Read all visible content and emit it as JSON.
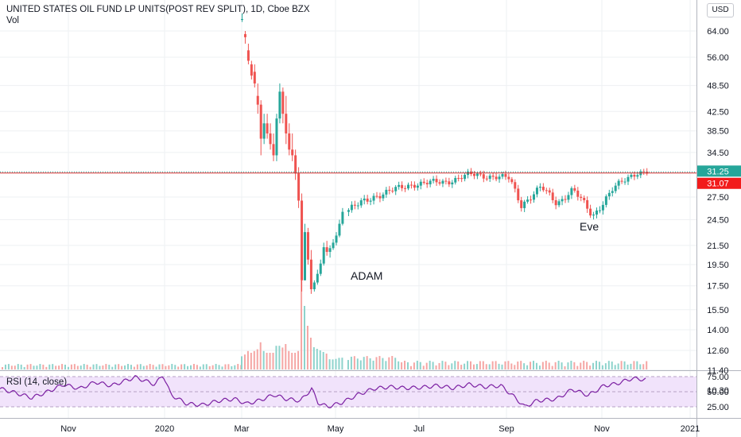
{
  "header": {
    "title": "UNITED STATES OIL FUND LP UNITS(POST REV SPLIT), 1D, Cboe BZX",
    "volume_label": "Vol",
    "currency": "USD"
  },
  "rsi_legend": "RSI (14, close)",
  "annotations": {
    "adam": "ADAM",
    "eve": "Eve"
  },
  "colors": {
    "up": "#26a69a",
    "down": "#ef5350",
    "vol_up": "#8dd3cc",
    "vol_down": "#f5a6a4",
    "rsi_line": "#7b1fa2",
    "rsi_band": "#f1e3fb",
    "hline": "#d32f2f",
    "grid": "#eef0f3"
  },
  "chart_data": {
    "type": "candlestick",
    "title": "UNITED STATES OIL FUND LP UNITS(POST REV SPLIT), 1D, Cboe BZX",
    "price_axis_ticks": [
      "64.00",
      "56.00",
      "48.50",
      "42.50",
      "38.50",
      "34.50",
      "27.50",
      "24.50",
      "21.50",
      "19.50",
      "17.50",
      "15.50",
      "14.00",
      "12.60",
      "11.40",
      "10.30"
    ],
    "time_axis_ticks": [
      "Nov",
      "2020",
      "Mar",
      "May",
      "Jul",
      "Sep",
      "Nov",
      "2021"
    ],
    "rsi_axis_ticks": [
      "75.00",
      "50.00",
      "25.00"
    ],
    "last_price": "31.25",
    "horizontal_line": "31.07",
    "price_range": [
      10.3,
      64
    ],
    "series": [
      {
        "name": "segA",
        "kind": "cluster",
        "candles": [
          [
            68.0,
            70.0,
            67.0,
            68.0
          ],
          [
            63.0,
            64.0,
            60.0,
            62.0
          ],
          [
            58.0,
            60.0,
            54.0,
            55.0
          ],
          [
            54.0,
            55.0,
            50.0,
            51.0
          ],
          [
            52.0,
            54.0,
            48.0,
            49.0
          ],
          [
            46.0,
            49.0,
            42.0,
            44.0
          ],
          [
            44.0,
            45.0,
            34.0,
            37.0
          ],
          [
            37.0,
            42.0,
            36.0,
            40.0
          ],
          [
            40.0,
            42.0,
            37.0,
            38.0
          ],
          [
            38.0,
            40.0,
            35.0,
            36.0
          ],
          [
            36.0,
            38.0,
            33.0,
            34.0
          ],
          [
            34.0,
            42.0,
            33.0,
            41.0
          ],
          [
            41.0,
            49.0,
            40.0,
            47.0
          ],
          [
            47.0,
            48.0,
            40.0,
            42.0
          ],
          [
            42.0,
            46.0,
            36.0,
            38.0
          ],
          [
            38.0,
            40.0,
            34.0,
            35.0
          ],
          [
            35.0,
            38.0,
            33.0,
            34.0
          ],
          [
            34.0,
            35.0,
            30.0,
            31.0
          ],
          [
            31.0,
            32.0,
            26.0,
            27.0
          ],
          [
            27.0,
            28.0,
            17.0,
            18.0
          ],
          [
            18.0,
            24.0,
            18.0,
            23.0
          ],
          [
            23.0,
            23.5,
            19.5,
            20.0
          ],
          [
            20.0,
            21.0,
            16.8,
            17.2
          ],
          [
            17.2,
            18.0,
            17.0,
            17.8
          ],
          [
            17.8,
            19.0,
            17.6,
            18.6
          ],
          [
            18.6,
            20.0,
            18.4,
            19.6
          ],
          [
            19.6,
            21.8,
            19.4,
            21.3
          ],
          [
            21.3,
            22.0,
            20.4,
            20.8
          ],
          [
            20.8,
            21.5,
            20.2,
            21.2
          ],
          [
            21.2,
            22.2,
            21.0,
            21.8
          ],
          [
            21.8,
            23.0,
            21.5,
            22.6
          ],
          [
            22.6,
            24.5,
            22.4,
            24.0
          ],
          [
            24.0,
            26.0,
            23.8,
            25.5
          ]
        ]
      },
      {
        "name": "segB",
        "kind": "trend",
        "anchors": [
          [
            434,
            25.5
          ],
          [
            470,
            27.6
          ],
          [
            520,
            29.4
          ],
          [
            560,
            29.7
          ],
          [
            590,
            30.8
          ],
          [
            625,
            30.5
          ],
          [
            640,
            30.2
          ],
          [
            655,
            26.4
          ],
          [
            680,
            28.9
          ],
          [
            700,
            26.6
          ],
          [
            720,
            28.6
          ],
          [
            745,
            24.9
          ],
          [
            770,
            28.6
          ],
          [
            800,
            31.2
          ],
          [
            815,
            31.3
          ]
        ]
      }
    ],
    "rsi": {
      "levels": [
        75,
        50,
        25
      ],
      "anchors": [
        [
          0,
          55
        ],
        [
          20,
          48
        ],
        [
          40,
          40
        ],
        [
          60,
          50
        ],
        [
          80,
          62
        ],
        [
          100,
          55
        ],
        [
          120,
          66
        ],
        [
          140,
          60
        ],
        [
          170,
          74
        ],
        [
          195,
          62
        ],
        [
          205,
          78
        ],
        [
          215,
          45
        ],
        [
          235,
          30
        ],
        [
          255,
          28
        ],
        [
          275,
          35
        ],
        [
          295,
          38
        ],
        [
          310,
          30
        ],
        [
          325,
          35
        ],
        [
          345,
          45
        ],
        [
          360,
          38
        ],
        [
          378,
          35
        ],
        [
          392,
          55
        ],
        [
          400,
          32
        ],
        [
          412,
          25
        ],
        [
          430,
          32
        ],
        [
          450,
          45
        ],
        [
          470,
          55
        ],
        [
          490,
          58
        ],
        [
          510,
          56
        ],
        [
          530,
          57
        ],
        [
          550,
          60
        ],
        [
          570,
          56
        ],
        [
          590,
          62
        ],
        [
          610,
          58
        ],
        [
          630,
          60
        ],
        [
          648,
          40
        ],
        [
          660,
          25
        ],
        [
          675,
          35
        ],
        [
          700,
          38
        ],
        [
          720,
          54
        ],
        [
          740,
          44
        ],
        [
          760,
          60
        ],
        [
          775,
          63
        ],
        [
          795,
          72
        ],
        [
          812,
          70
        ]
      ]
    }
  }
}
